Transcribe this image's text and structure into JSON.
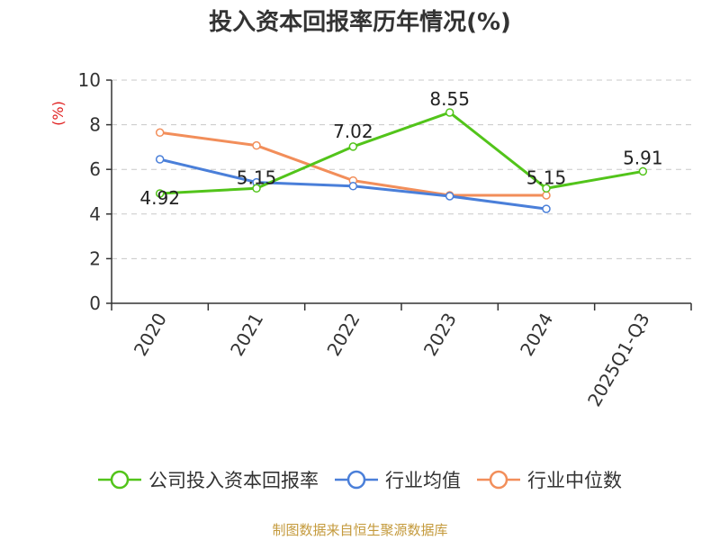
{
  "chart_data": {
    "type": "line",
    "title": "投入资本回报率历年情况(%)",
    "xlabel": "",
    "ylabel": "(%)",
    "categories": [
      "2020",
      "2021",
      "2022",
      "2023",
      "2024",
      "2025Q1-Q3"
    ],
    "ylim": [
      0,
      10
    ],
    "yticks": [
      0,
      2,
      4,
      6,
      8,
      10
    ],
    "grid": true,
    "legend_position": "bottom",
    "series": [
      {
        "name": "公司投入资本回报率",
        "color": "#52c41a",
        "values": [
          4.92,
          5.15,
          7.02,
          8.55,
          5.15,
          5.91
        ],
        "labels": true
      },
      {
        "name": "行业均值",
        "color": "#4a7fd9",
        "values": [
          6.45,
          5.42,
          5.25,
          4.8,
          4.23,
          null
        ],
        "labels": false
      },
      {
        "name": "行业中位数",
        "color": "#f28e5a",
        "values": [
          7.65,
          7.07,
          5.5,
          4.84,
          4.84,
          null
        ],
        "labels": false
      }
    ]
  },
  "source": "制图数据来自恒生聚源数据库"
}
